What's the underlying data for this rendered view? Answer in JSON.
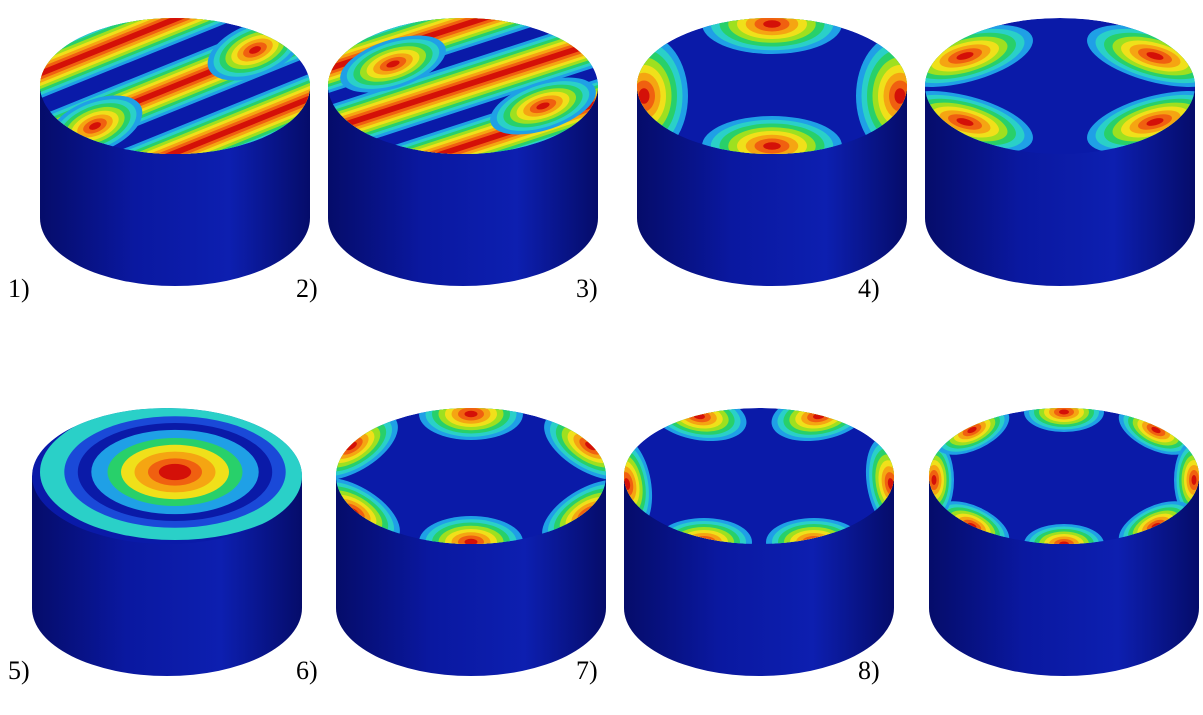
{
  "colors": {
    "background": "#ffffff",
    "cylinder_side": "#0a18a0",
    "cylinder_side_dark": "#050c6a",
    "contour_levels": [
      "#0a1aa8",
      "#1a49d8",
      "#1fa0e6",
      "#2ad0c8",
      "#28d06a",
      "#9ee020",
      "#f0e01a",
      "#f5a512",
      "#f06010",
      "#d41008"
    ]
  },
  "panels": [
    {
      "label": "1)",
      "mode": "diametral-1"
    },
    {
      "label": "2)",
      "mode": "diametral-2"
    },
    {
      "label": "3)",
      "mode": "diametral-4-lobes"
    },
    {
      "label": "4)",
      "mode": "diametral-4-lobes-rotated"
    },
    {
      "label": "5)",
      "mode": "axisymmetric-rings"
    },
    {
      "label": "6)",
      "mode": "diametral-6-lobes"
    },
    {
      "label": "7)",
      "mode": "diametral-6-lobes-rotated"
    },
    {
      "label": "8)",
      "mode": "diametral-8-lobes"
    }
  ]
}
